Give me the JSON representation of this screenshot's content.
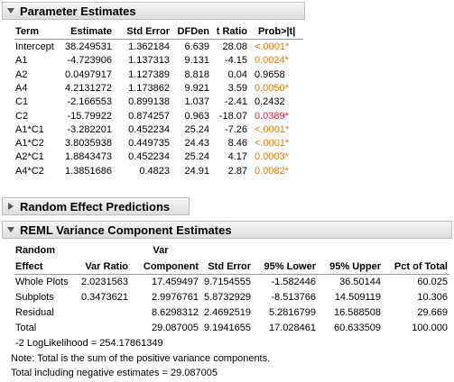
{
  "param": {
    "title": "Parameter Estimates",
    "columns": [
      "Term",
      "Estimate",
      "Std Error",
      "DFDen",
      "t Ratio",
      "Prob>|t|"
    ],
    "rows": [
      {
        "term": "Intercept",
        "estimate": "38.249531",
        "stderr": "1.362184",
        "dfden": "6.639",
        "tratio": "28.08",
        "prob": "<.0001*",
        "flag": "orange"
      },
      {
        "term": "A1",
        "estimate": "-4.723906",
        "stderr": "1.137313",
        "dfden": "9.131",
        "tratio": "-4.15",
        "prob": "0.0024*",
        "flag": "orange"
      },
      {
        "term": "A2",
        "estimate": "0.0497917",
        "stderr": "1.127389",
        "dfden": "8.818",
        "tratio": "0.04",
        "prob": "0.9658",
        "flag": "none"
      },
      {
        "term": "A4",
        "estimate": "4.2131272",
        "stderr": "1.173862",
        "dfden": "9.921",
        "tratio": "3.59",
        "prob": "0.0050*",
        "flag": "orange"
      },
      {
        "term": "C1",
        "estimate": "-2.166553",
        "stderr": "0.899138",
        "dfden": "1.037",
        "tratio": "-2.41",
        "prob": "0.2432",
        "flag": "none"
      },
      {
        "term": "C2",
        "estimate": "-15.79922",
        "stderr": "0.874257",
        "dfden": "0.963",
        "tratio": "-18.07",
        "prob": "0.0389*",
        "flag": "red"
      },
      {
        "term": "A1*C1",
        "estimate": "-3.282201",
        "stderr": "0.452234",
        "dfden": "25.24",
        "tratio": "-7.26",
        "prob": "<.0001*",
        "flag": "orange"
      },
      {
        "term": "A1*C2",
        "estimate": "3.8035938",
        "stderr": "0.449735",
        "dfden": "24.43",
        "tratio": "8.46",
        "prob": "<.0001*",
        "flag": "orange"
      },
      {
        "term": "A2*C1",
        "estimate": "1.8843473",
        "stderr": "0.452234",
        "dfden": "25.24",
        "tratio": "4.17",
        "prob": "0.0003*",
        "flag": "orange"
      },
      {
        "term": "A4*C2",
        "estimate": "1.3851686",
        "stderr": "0.4823",
        "dfden": "24.91",
        "tratio": "2.87",
        "prob": "0.0082*",
        "flag": "orange"
      }
    ]
  },
  "random_effect": {
    "title": "Random Effect Predictions"
  },
  "reml": {
    "title": "REML Variance Component Estimates",
    "header_top": {
      "col0": "Random",
      "col2": "Var"
    },
    "header_bottom": [
      "Effect",
      "Var Ratio",
      "Component",
      "Std Error",
      "95% Lower",
      "95% Upper",
      "Pct of Total"
    ],
    "rows": [
      {
        "effect": "Whole Plots",
        "ratio": "2.0231563",
        "component": "17.459497",
        "stderr": "9.7154555",
        "lower": "-1.582446",
        "upper": "36.50144",
        "pct": "60.025"
      },
      {
        "effect": "Subplots",
        "ratio": "0.3473621",
        "component": "2.9976761",
        "stderr": "5.8732929",
        "lower": "-8.513766",
        "upper": "14.509119",
        "pct": "10.306"
      },
      {
        "effect": "Residual",
        "ratio": "",
        "component": "8.6298312",
        "stderr": "2.4692519",
        "lower": "5.2816799",
        "upper": "16.588508",
        "pct": "29.669"
      },
      {
        "effect": "Total",
        "ratio": "",
        "component": "29.087005",
        "stderr": "9.1941655",
        "lower": "17.028461",
        "upper": "60.633509",
        "pct": "100.000"
      }
    ],
    "loglik": "-2 LogLikelihood =  254.17861349",
    "note1": "Note: Total is the sum of the positive variance components.",
    "note2": "Total including negative estimates =  29.087005"
  }
}
